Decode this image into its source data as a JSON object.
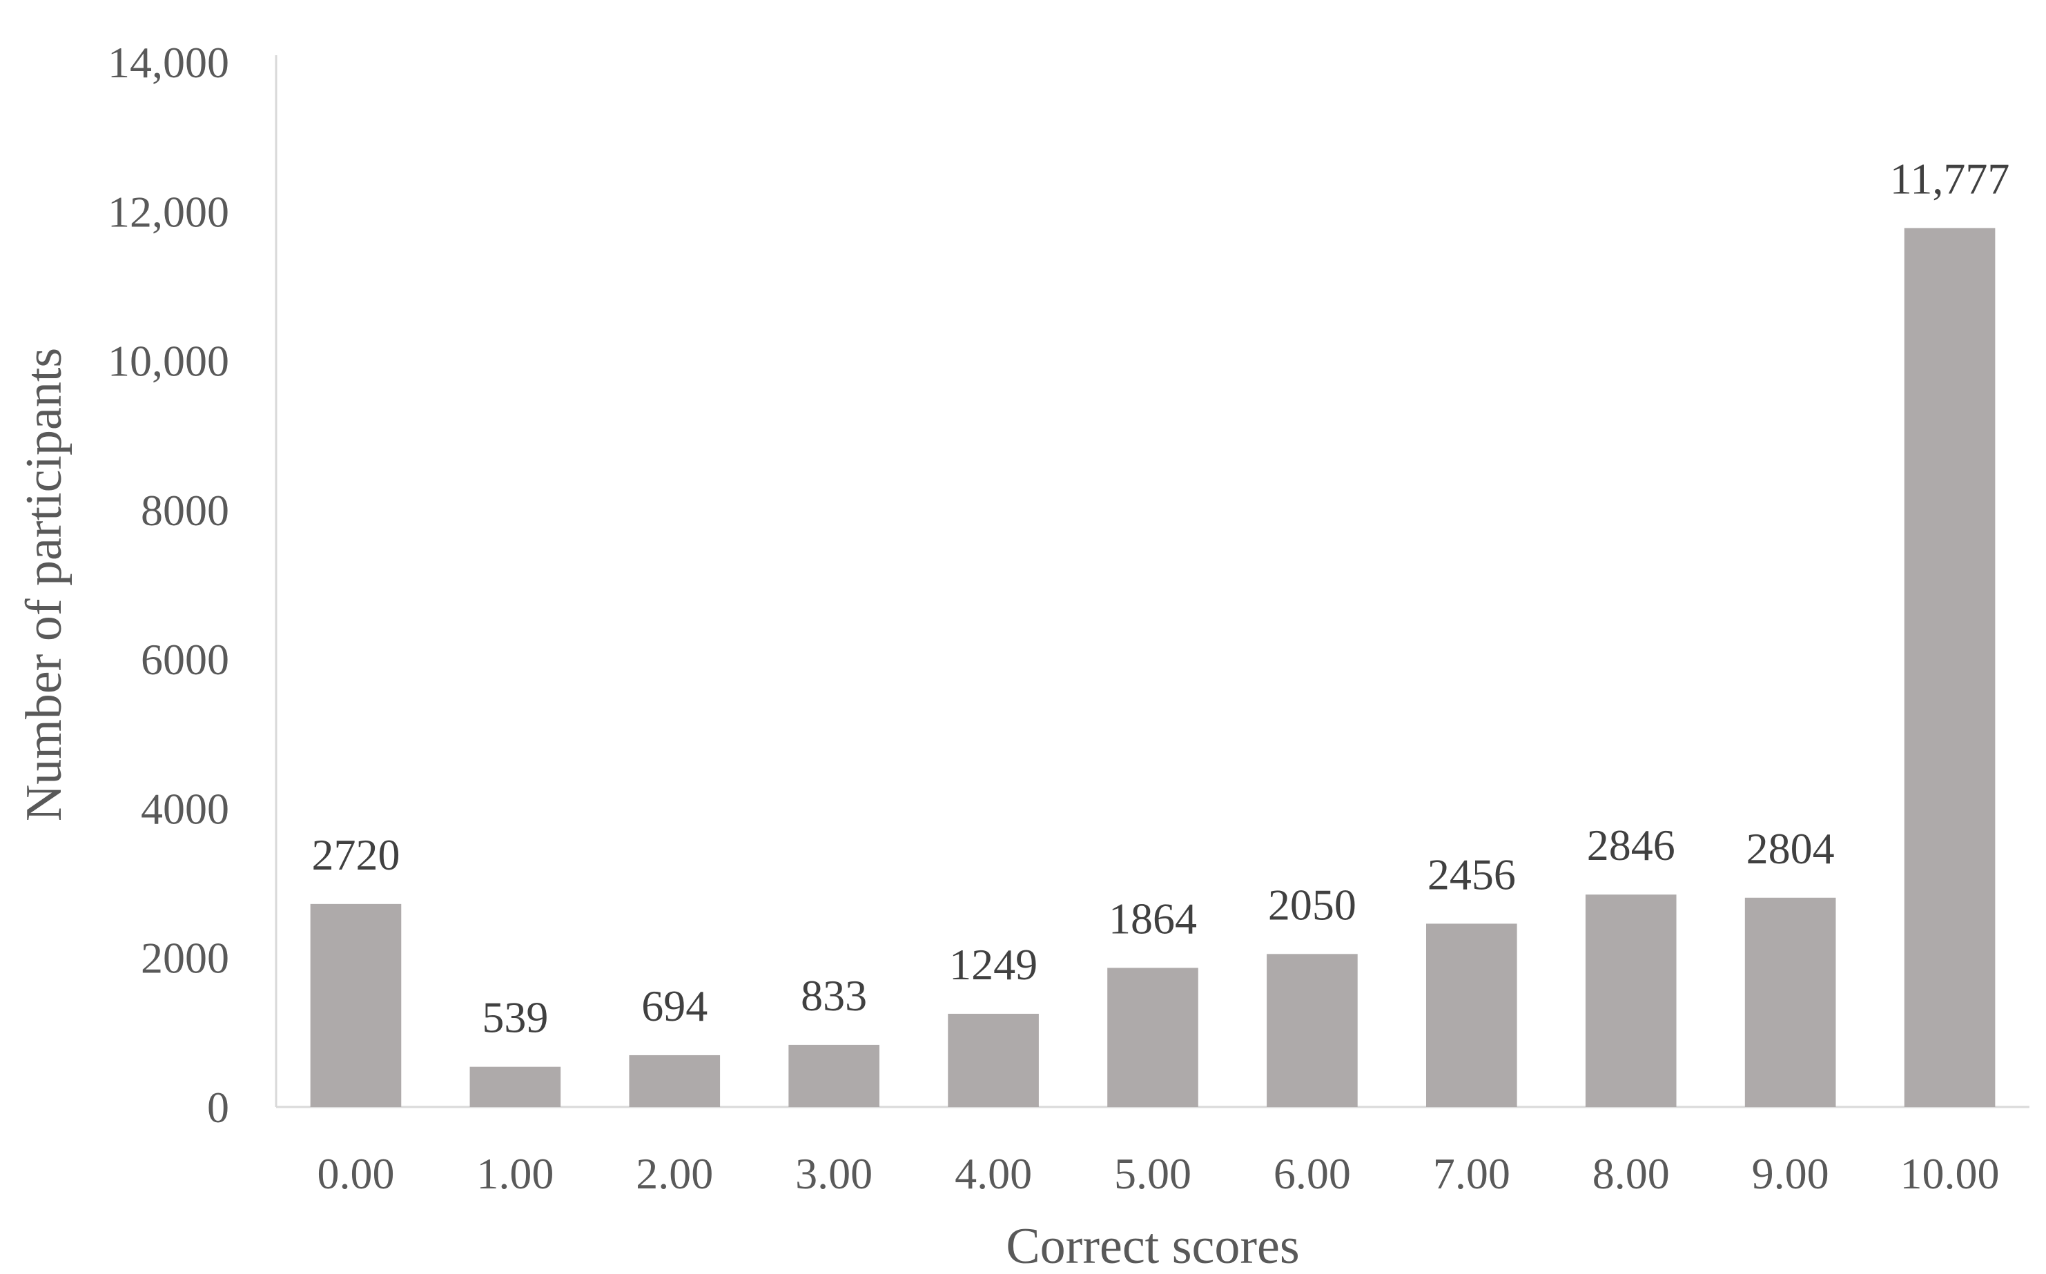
{
  "chart_data": {
    "type": "bar",
    "categories": [
      "0.00",
      "1.00",
      "2.00",
      "3.00",
      "4.00",
      "5.00",
      "6.00",
      "7.00",
      "8.00",
      "9.00",
      "10.00"
    ],
    "values": [
      2720,
      539,
      694,
      833,
      1249,
      1864,
      2050,
      2456,
      2846,
      2804,
      11777
    ],
    "data_labels": [
      "2720",
      "539",
      "694",
      "833",
      "1249",
      "1864",
      "2050",
      "2456",
      "2846",
      "2804",
      "11,777"
    ],
    "xlabel": "Correct scores",
    "ylabel": "Number of participants",
    "ylim": [
      0,
      14000
    ],
    "yticks": [
      0,
      2000,
      4000,
      6000,
      8000,
      10000,
      12000,
      14000
    ],
    "ytick_labels": [
      "0",
      "2000",
      "4000",
      "6000",
      "8000",
      "10,000",
      "12,000",
      "14,000"
    ],
    "grid": false,
    "legend": "none",
    "bar_color": "#aeaaaa"
  }
}
